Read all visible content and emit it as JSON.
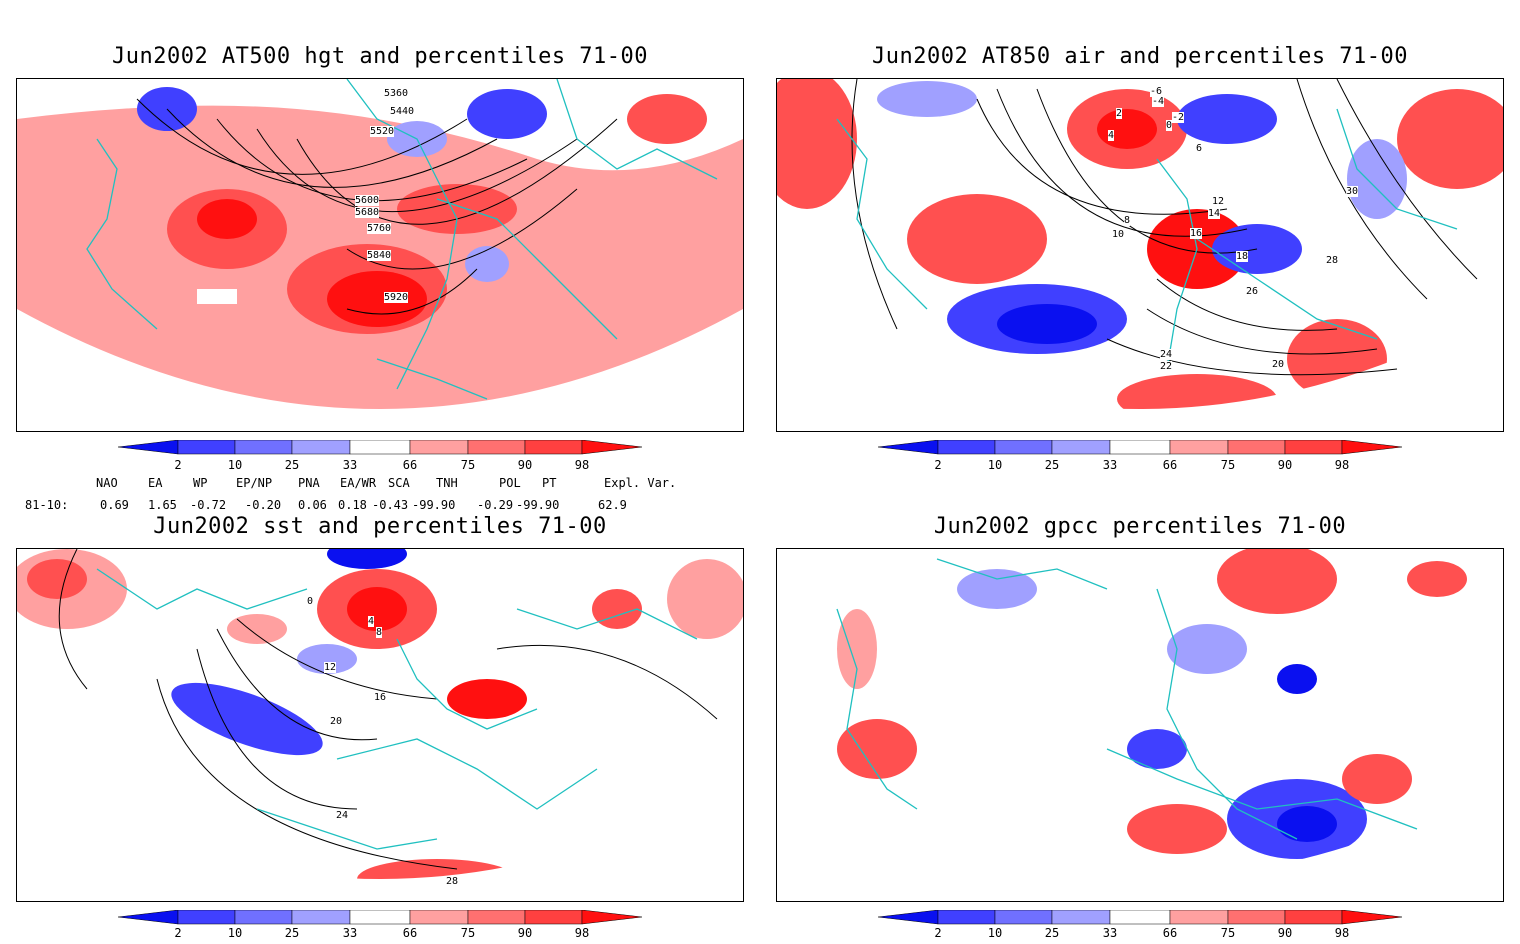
{
  "panels": [
    {
      "id": "hgt500",
      "title": "Jun2002 AT500 hgt and percentiles 71-00",
      "contour_labels": [
        "5360",
        "5440",
        "5520",
        "5600",
        "5680",
        "5760",
        "5840",
        "5920"
      ]
    },
    {
      "id": "air850",
      "title": "Jun2002 AT850 air and percentiles 71-00",
      "contour_labels": [
        "-6",
        "-4",
        "-2",
        "0",
        "2",
        "4",
        "6",
        "8",
        "10",
        "12",
        "14",
        "16",
        "18",
        "20",
        "22",
        "24",
        "26",
        "28",
        "30"
      ]
    },
    {
      "id": "sst",
      "title": "Jun2002 sst and percentiles 71-00",
      "contour_labels": [
        "0",
        "4",
        "8",
        "12",
        "16",
        "20",
        "24",
        "28"
      ]
    },
    {
      "id": "gpcc",
      "title": "Jun2002 gpcc percentiles 71-00",
      "contour_labels": []
    }
  ],
  "colorbar": {
    "ticks": [
      "2",
      "10",
      "25",
      "33",
      "66",
      "75",
      "90",
      "98"
    ],
    "colors": {
      "blue_dark": "#0a10f0",
      "blue_mid": "#4040ff",
      "blue_light": "#a0a0ff",
      "white": "#ffffff",
      "red_light": "#ffa0a0",
      "red_mid": "#ff5050",
      "red_dark": "#ff1010"
    }
  },
  "indices": {
    "headers": [
      "NAO",
      "EA",
      "WP",
      "EP/NP",
      "PNA",
      "EA/WR",
      "SCA",
      "TNH",
      "POL",
      "PT",
      "Expl. Var."
    ],
    "row_label": "81-10:",
    "values": [
      "0.69",
      "1.65",
      "-0.72",
      "-0.20",
      "0.06",
      "0.18",
      "-0.43",
      "-99.90",
      "-0.29",
      "-99.90",
      "62.9"
    ]
  },
  "map_style": {
    "coast_color": "#20c0c0",
    "contour_color": "#000000"
  }
}
